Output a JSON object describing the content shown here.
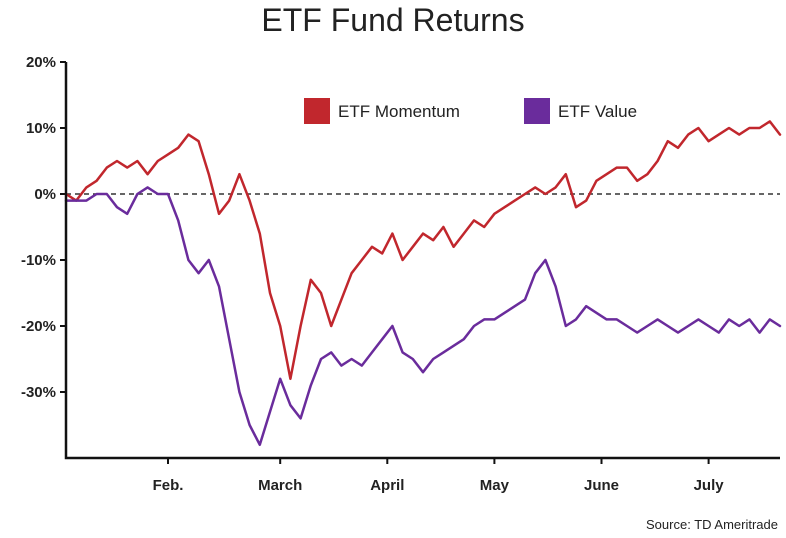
{
  "chart_data": {
    "type": "line",
    "title": "ETF Fund Returns",
    "source": "Source: TD Ameritrade",
    "xlabel": "",
    "ylabel": "",
    "ylim": [
      -40,
      20
    ],
    "yticks": [
      20,
      10,
      0,
      -10,
      -20,
      -30
    ],
    "ytick_labels": [
      "20%",
      "10%",
      "0%",
      "-10%",
      "-20%",
      "-30%"
    ],
    "xlim": [
      0,
      140
    ],
    "xticks": [
      20,
      42,
      63,
      84,
      105,
      126
    ],
    "xtick_labels": [
      "Feb.",
      "March",
      "April",
      "May",
      "June",
      "July"
    ],
    "zero_line": "dashed",
    "legend_position": "top-right",
    "colors": {
      "momentum": "#c1272d",
      "value": "#6a2c9c"
    },
    "series": [
      {
        "name": "ETF Momentum",
        "color": "#c1272d",
        "x": [
          0,
          2,
          4,
          6,
          8,
          10,
          12,
          14,
          16,
          18,
          20,
          22,
          24,
          26,
          28,
          30,
          32,
          34,
          36,
          38,
          40,
          42,
          44,
          46,
          48,
          50,
          52,
          54,
          56,
          58,
          60,
          62,
          64,
          66,
          68,
          70,
          72,
          74,
          76,
          78,
          80,
          82,
          84,
          86,
          88,
          90,
          92,
          94,
          96,
          98,
          100,
          102,
          104,
          106,
          108,
          110,
          112,
          114,
          116,
          118,
          120,
          122,
          124,
          126,
          128,
          130,
          132,
          134,
          136,
          138,
          140
        ],
        "values": [
          0,
          -1,
          1,
          2,
          4,
          5,
          4,
          5,
          3,
          5,
          6,
          7,
          9,
          8,
          3,
          -3,
          -1,
          3,
          -1,
          -6,
          -15,
          -20,
          -28,
          -20,
          -13,
          -15,
          -20,
          -16,
          -12,
          -10,
          -8,
          -9,
          -6,
          -10,
          -8,
          -6,
          -7,
          -5,
          -8,
          -6,
          -4,
          -5,
          -3,
          -2,
          -1,
          0,
          1,
          0,
          1,
          3,
          -2,
          -1,
          2,
          3,
          4,
          4,
          2,
          3,
          5,
          8,
          7,
          9,
          10,
          8,
          9,
          10,
          9,
          10,
          10,
          11,
          9
        ]
      },
      {
        "name": "ETF Value",
        "color": "#6a2c9c",
        "x": [
          0,
          2,
          4,
          6,
          8,
          10,
          12,
          14,
          16,
          18,
          20,
          22,
          24,
          26,
          28,
          30,
          32,
          34,
          36,
          38,
          40,
          42,
          44,
          46,
          48,
          50,
          52,
          54,
          56,
          58,
          60,
          62,
          64,
          66,
          68,
          70,
          72,
          74,
          76,
          78,
          80,
          82,
          84,
          86,
          88,
          90,
          92,
          94,
          96,
          98,
          100,
          102,
          104,
          106,
          108,
          110,
          112,
          114,
          116,
          118,
          120,
          122,
          124,
          126,
          128,
          130,
          132,
          134,
          136,
          138,
          140
        ],
        "values": [
          -1,
          -1,
          -1,
          0,
          0,
          -2,
          -3,
          0,
          1,
          0,
          0,
          -4,
          -10,
          -12,
          -10,
          -14,
          -22,
          -30,
          -35,
          -38,
          -33,
          -28,
          -32,
          -34,
          -29,
          -25,
          -24,
          -26,
          -25,
          -26,
          -24,
          -22,
          -20,
          -24,
          -25,
          -27,
          -25,
          -24,
          -23,
          -22,
          -20,
          -19,
          -19,
          -18,
          -17,
          -16,
          -12,
          -10,
          -14,
          -20,
          -19,
          -17,
          -18,
          -19,
          -19,
          -20,
          -21,
          -20,
          -19,
          -20,
          -21,
          -20,
          -19,
          -20,
          -21,
          -19,
          -20,
          -19,
          -21,
          -19,
          -20
        ]
      }
    ]
  }
}
